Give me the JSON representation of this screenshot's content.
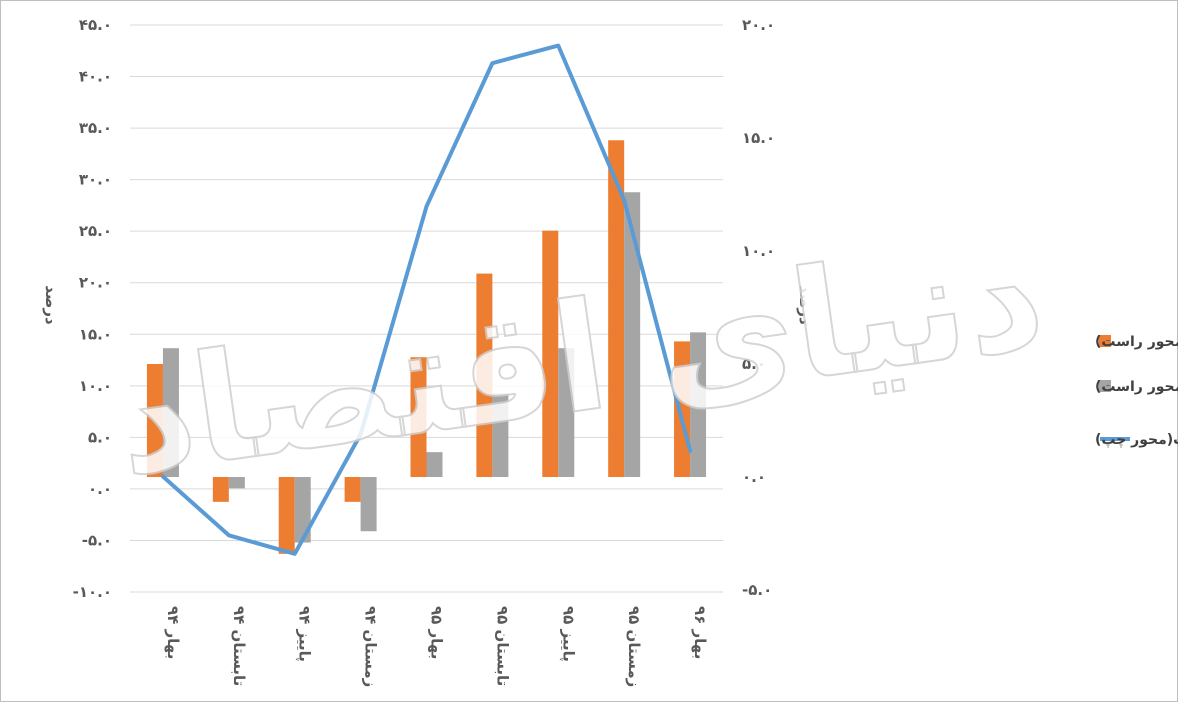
{
  "chart_data": {
    "type": "bar",
    "categories": [
      "بهار ۹۴",
      "تابستان ۹۴",
      "پاییز ۹۴",
      "زمستان ۹۴",
      "بهار ۹۵",
      "تابستان ۹۵",
      "پاییز ۹۵",
      "زمستان ۹۵",
      "بهار ۹۶"
    ],
    "series": [
      {
        "name": "رشد اقتصادی با نفت(محور راست)",
        "type": "bar",
        "axis": "right",
        "color": "#ED7D31",
        "values": [
          5.0,
          -1.1,
          -3.4,
          -1.1,
          5.3,
          9.0,
          10.9,
          14.9,
          6.0
        ]
      },
      {
        "name": "رشد اقتصادی بدون نفت(محور راست)",
        "type": "bar",
        "axis": "right",
        "color": "#A5A5A5",
        "values": [
          5.7,
          -0.5,
          -2.9,
          -2.4,
          1.1,
          3.7,
          5.7,
          12.6,
          6.4
        ]
      },
      {
        "name": "رشد بخش نفت(محور چپ)",
        "type": "line",
        "axis": "left",
        "color": "#5B9BD5",
        "values": [
          1.2,
          -4.5,
          -6.3,
          5.3,
          27.4,
          41.3,
          43.0,
          28.0,
          3.7
        ]
      }
    ],
    "left_axis": {
      "ylabel": "درصد",
      "ylim": [
        -10,
        45
      ],
      "ticks": [
        -10,
        -5,
        0,
        5,
        10,
        15,
        20,
        25,
        30,
        35,
        40,
        45
      ],
      "tick_labels": [
        "-۱۰.۰",
        "-۵.۰",
        "۰.۰",
        "۵.۰",
        "۱۰.۰",
        "۱۵.۰",
        "۲۰.۰",
        "۲۵.۰",
        "۳۰.۰",
        "۳۵.۰",
        "۴۰.۰",
        "۴۵.۰"
      ]
    },
    "right_axis": {
      "ylabel": "درصد",
      "ylim": [
        -5,
        20
      ],
      "ticks": [
        -5,
        0,
        5,
        10,
        15,
        20
      ],
      "tick_labels": [
        "-۵.۰",
        "۰.۰",
        "۵.۰",
        "۱۰.۰",
        "۱۵.۰",
        "۲۰.۰"
      ]
    },
    "grid": true,
    "legend_position": "right",
    "watermark": "دنیای اقتصاد"
  }
}
